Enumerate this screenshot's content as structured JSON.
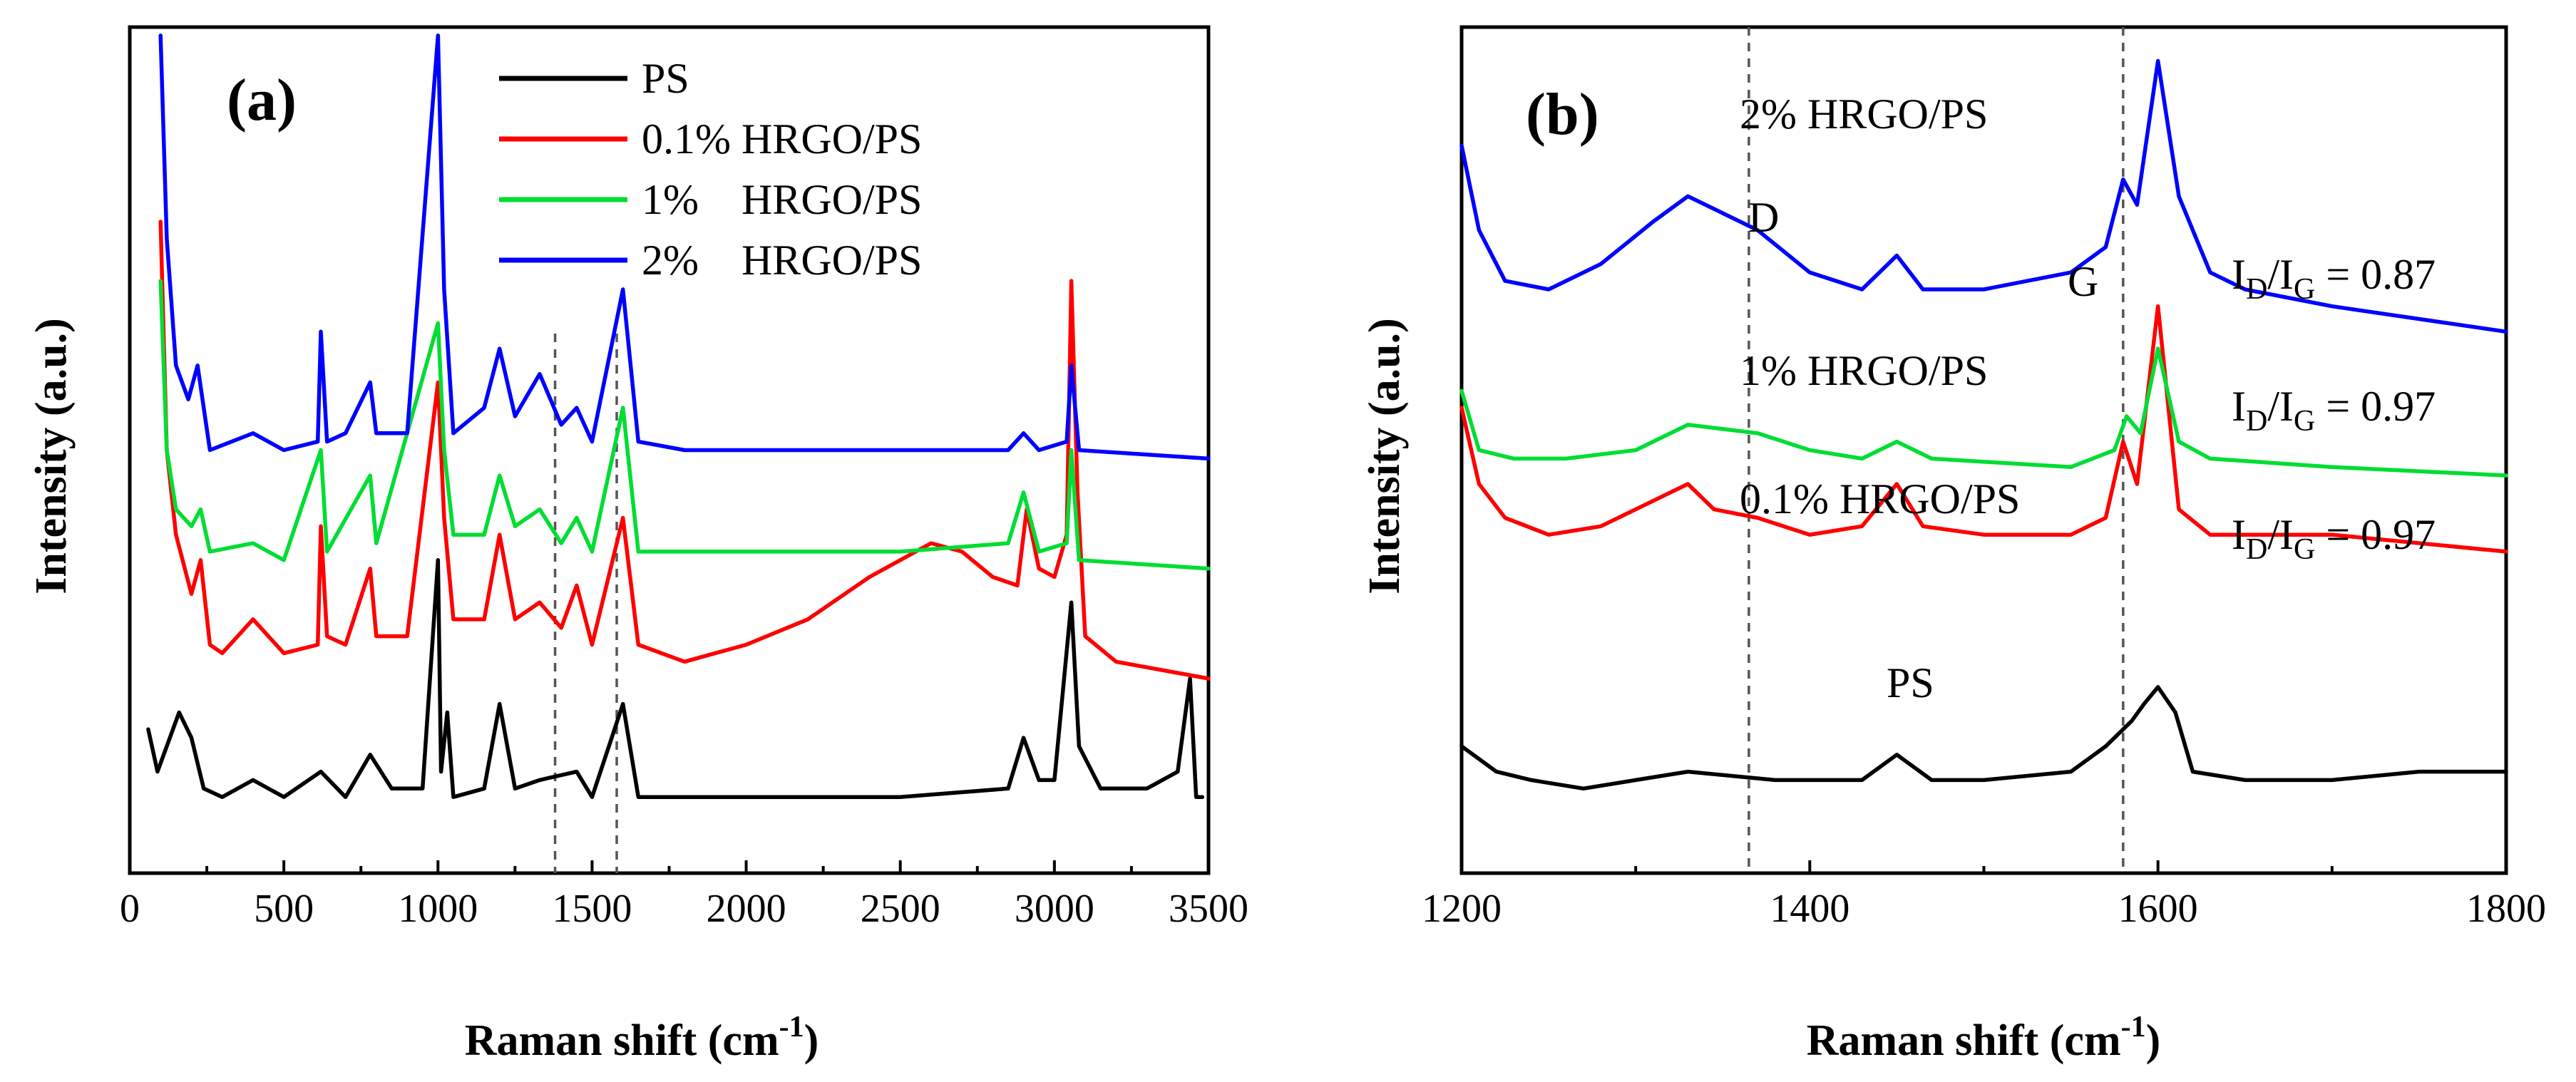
{
  "colors": {
    "PS": "#000000",
    "HRGO_0_1": "#ff0000",
    "HRGO_1": "#00dd33",
    "HRGO_2": "#0000ff"
  },
  "chart_data": [
    {
      "panel": "(a)",
      "type": "line",
      "xlabel": "Raman shift (cm",
      "xlabel_sup": "-1",
      "xlabel_tail": ")",
      "ylabel": "Intensity (a.u.)",
      "xlim": [
        0,
        3500
      ],
      "x_ticks": [
        "0",
        "500",
        "1000",
        "1500",
        "2000",
        "2500",
        "3000",
        "3500"
      ],
      "y_ticks": [],
      "reference_lines_x": [
        1380,
        1580
      ],
      "legend_position": "top-center",
      "legend": [
        {
          "series": "PS",
          "label": "PS"
        },
        {
          "series": "HRGO_0_1",
          "label": "0.1% HRGO/PS"
        },
        {
          "series": "HRGO_1",
          "label": "1%    HRGO/PS"
        },
        {
          "series": "HRGO_2",
          "label": "2%    HRGO/PS"
        }
      ],
      "series": [
        {
          "name": "PS",
          "baseline": 0.09,
          "points": [
            [
              60,
              0.17
            ],
            [
              90,
              0.12
            ],
            [
              120,
              0.15
            ],
            [
              160,
              0.19
            ],
            [
              200,
              0.16
            ],
            [
              240,
              0.1
            ],
            [
              300,
              0.09
            ],
            [
              400,
              0.11
            ],
            [
              500,
              0.09
            ],
            [
              620,
              0.12
            ],
            [
              700,
              0.09
            ],
            [
              780,
              0.14
            ],
            [
              850,
              0.1
            ],
            [
              950,
              0.1
            ],
            [
              1000,
              0.37
            ],
            [
              1010,
              0.12
            ],
            [
              1030,
              0.19
            ],
            [
              1050,
              0.09
            ],
            [
              1150,
              0.1
            ],
            [
              1200,
              0.2
            ],
            [
              1250,
              0.1
            ],
            [
              1330,
              0.11
            ],
            [
              1450,
              0.12
            ],
            [
              1500,
              0.09
            ],
            [
              1600,
              0.2
            ],
            [
              1650,
              0.09
            ],
            [
              2000,
              0.09
            ],
            [
              2500,
              0.09
            ],
            [
              2850,
              0.1
            ],
            [
              2900,
              0.16
            ],
            [
              2950,
              0.11
            ],
            [
              3000,
              0.11
            ],
            [
              3055,
              0.32
            ],
            [
              3080,
              0.15
            ],
            [
              3150,
              0.1
            ],
            [
              3300,
              0.1
            ],
            [
              3400,
              0.12
            ],
            [
              3440,
              0.23
            ],
            [
              3460,
              0.09
            ],
            [
              3480,
              0.09
            ]
          ]
        },
        {
          "name": "HRGO_0_1",
          "baseline": 0.25,
          "points": [
            [
              100,
              0.77
            ],
            [
              120,
              0.5
            ],
            [
              150,
              0.4
            ],
            [
              200,
              0.33
            ],
            [
              230,
              0.37
            ],
            [
              260,
              0.27
            ],
            [
              300,
              0.26
            ],
            [
              400,
              0.3
            ],
            [
              500,
              0.26
            ],
            [
              610,
              0.27
            ],
            [
              620,
              0.41
            ],
            [
              640,
              0.28
            ],
            [
              700,
              0.27
            ],
            [
              780,
              0.36
            ],
            [
              800,
              0.28
            ],
            [
              900,
              0.28
            ],
            [
              1000,
              0.58
            ],
            [
              1020,
              0.42
            ],
            [
              1050,
              0.3
            ],
            [
              1150,
              0.3
            ],
            [
              1200,
              0.4
            ],
            [
              1250,
              0.3
            ],
            [
              1330,
              0.32
            ],
            [
              1400,
              0.29
            ],
            [
              1450,
              0.34
            ],
            [
              1500,
              0.27
            ],
            [
              1600,
              0.42
            ],
            [
              1650,
              0.27
            ],
            [
              1800,
              0.25
            ],
            [
              2000,
              0.27
            ],
            [
              2200,
              0.3
            ],
            [
              2400,
              0.35
            ],
            [
              2600,
              0.39
            ],
            [
              2700,
              0.38
            ],
            [
              2800,
              0.35
            ],
            [
              2880,
              0.34
            ],
            [
              2910,
              0.43
            ],
            [
              2950,
              0.36
            ],
            [
              3000,
              0.35
            ],
            [
              3040,
              0.4
            ],
            [
              3055,
              0.7
            ],
            [
              3075,
              0.45
            ],
            [
              3100,
              0.28
            ],
            [
              3200,
              0.25
            ],
            [
              3500,
              0.23
            ]
          ]
        },
        {
          "name": "HRGO_1",
          "baseline": 0.37,
          "points": [
            [
              100,
              0.7
            ],
            [
              120,
              0.5
            ],
            [
              150,
              0.43
            ],
            [
              200,
              0.41
            ],
            [
              230,
              0.43
            ],
            [
              260,
              0.38
            ],
            [
              400,
              0.39
            ],
            [
              500,
              0.37
            ],
            [
              620,
              0.5
            ],
            [
              640,
              0.38
            ],
            [
              780,
              0.47
            ],
            [
              800,
              0.39
            ],
            [
              1000,
              0.65
            ],
            [
              1020,
              0.5
            ],
            [
              1050,
              0.4
            ],
            [
              1150,
              0.4
            ],
            [
              1200,
              0.47
            ],
            [
              1250,
              0.41
            ],
            [
              1330,
              0.43
            ],
            [
              1400,
              0.39
            ],
            [
              1450,
              0.42
            ],
            [
              1500,
              0.38
            ],
            [
              1600,
              0.55
            ],
            [
              1650,
              0.38
            ],
            [
              2000,
              0.38
            ],
            [
              2500,
              0.38
            ],
            [
              2850,
              0.39
            ],
            [
              2900,
              0.45
            ],
            [
              2950,
              0.38
            ],
            [
              3040,
              0.39
            ],
            [
              3055,
              0.5
            ],
            [
              3080,
              0.37
            ],
            [
              3500,
              0.36
            ]
          ]
        },
        {
          "name": "HRGO_2",
          "baseline": 0.49,
          "points": [
            [
              100,
              0.99
            ],
            [
              120,
              0.75
            ],
            [
              150,
              0.6
            ],
            [
              190,
              0.56
            ],
            [
              220,
              0.6
            ],
            [
              260,
              0.5
            ],
            [
              400,
              0.52
            ],
            [
              500,
              0.5
            ],
            [
              610,
              0.51
            ],
            [
              620,
              0.64
            ],
            [
              640,
              0.51
            ],
            [
              700,
              0.52
            ],
            [
              780,
              0.58
            ],
            [
              800,
              0.52
            ],
            [
              900,
              0.52
            ],
            [
              1000,
              0.99
            ],
            [
              1020,
              0.69
            ],
            [
              1050,
              0.52
            ],
            [
              1150,
              0.55
            ],
            [
              1200,
              0.62
            ],
            [
              1250,
              0.54
            ],
            [
              1330,
              0.59
            ],
            [
              1400,
              0.53
            ],
            [
              1450,
              0.55
            ],
            [
              1500,
              0.51
            ],
            [
              1600,
              0.69
            ],
            [
              1650,
              0.51
            ],
            [
              1800,
              0.5
            ],
            [
              2000,
              0.5
            ],
            [
              2500,
              0.5
            ],
            [
              2850,
              0.5
            ],
            [
              2900,
              0.52
            ],
            [
              2950,
              0.5
            ],
            [
              3040,
              0.51
            ],
            [
              3055,
              0.6
            ],
            [
              3080,
              0.5
            ],
            [
              3500,
              0.49
            ]
          ]
        }
      ]
    },
    {
      "panel": "(b)",
      "type": "line",
      "xlabel": "Raman shift (cm",
      "xlabel_sup": "-1",
      "xlabel_tail": ")",
      "ylabel": "Intensity (a.u.)",
      "xlim": [
        1200,
        1800
      ],
      "x_ticks": [
        "1200",
        "1400",
        "1600",
        "1800"
      ],
      "y_ticks": [],
      "reference_lines_x": [
        1365,
        1580
      ],
      "annotations": {
        "label_2": "2% HRGO/PS",
        "label_1": "1% HRGO/PS",
        "label_0_1": "0.1% HRGO/PS",
        "label_ps": "PS",
        "D": "D",
        "G": "G",
        "ratio_2": "0.87",
        "ratio_1": "0.97",
        "ratio_0_1": "0.97",
        "ratio_prefix": "I",
        "ratio_sub_D": "D",
        "ratio_sub_G": "G",
        "ratio_sep": "/",
        "ratio_eq": " = "
      },
      "series": [
        {
          "name": "PS",
          "points": [
            [
              1200,
              0.15
            ],
            [
              1220,
              0.12
            ],
            [
              1240,
              0.11
            ],
            [
              1270,
              0.1
            ],
            [
              1300,
              0.11
            ],
            [
              1330,
              0.12
            ],
            [
              1380,
              0.11
            ],
            [
              1430,
              0.11
            ],
            [
              1450,
              0.14
            ],
            [
              1470,
              0.11
            ],
            [
              1500,
              0.11
            ],
            [
              1550,
              0.12
            ],
            [
              1570,
              0.15
            ],
            [
              1585,
              0.18
            ],
            [
              1592,
              0.2
            ],
            [
              1600,
              0.22
            ],
            [
              1610,
              0.19
            ],
            [
              1620,
              0.12
            ],
            [
              1650,
              0.11
            ],
            [
              1700,
              0.11
            ],
            [
              1750,
              0.12
            ],
            [
              1800,
              0.12
            ]
          ]
        },
        {
          "name": "HRGO_0_1",
          "points": [
            [
              1200,
              0.55
            ],
            [
              1210,
              0.46
            ],
            [
              1225,
              0.42
            ],
            [
              1250,
              0.4
            ],
            [
              1280,
              0.41
            ],
            [
              1310,
              0.44
            ],
            [
              1330,
              0.46
            ],
            [
              1345,
              0.43
            ],
            [
              1370,
              0.42
            ],
            [
              1400,
              0.4
            ],
            [
              1430,
              0.41
            ],
            [
              1450,
              0.46
            ],
            [
              1465,
              0.41
            ],
            [
              1500,
              0.4
            ],
            [
              1550,
              0.4
            ],
            [
              1570,
              0.42
            ],
            [
              1580,
              0.51
            ],
            [
              1588,
              0.46
            ],
            [
              1600,
              0.67
            ],
            [
              1612,
              0.43
            ],
            [
              1630,
              0.4
            ],
            [
              1700,
              0.4
            ],
            [
              1800,
              0.38
            ]
          ]
        },
        {
          "name": "HRGO_1",
          "points": [
            [
              1200,
              0.57
            ],
            [
              1210,
              0.5
            ],
            [
              1230,
              0.49
            ],
            [
              1260,
              0.49
            ],
            [
              1300,
              0.5
            ],
            [
              1330,
              0.53
            ],
            [
              1370,
              0.52
            ],
            [
              1400,
              0.5
            ],
            [
              1430,
              0.49
            ],
            [
              1450,
              0.51
            ],
            [
              1470,
              0.49
            ],
            [
              1550,
              0.48
            ],
            [
              1575,
              0.5
            ],
            [
              1582,
              0.54
            ],
            [
              1590,
              0.52
            ],
            [
              1600,
              0.62
            ],
            [
              1612,
              0.51
            ],
            [
              1630,
              0.49
            ],
            [
              1700,
              0.48
            ],
            [
              1800,
              0.47
            ]
          ]
        },
        {
          "name": "HRGO_2",
          "points": [
            [
              1200,
              0.86
            ],
            [
              1210,
              0.76
            ],
            [
              1225,
              0.7
            ],
            [
              1250,
              0.69
            ],
            [
              1280,
              0.72
            ],
            [
              1310,
              0.77
            ],
            [
              1330,
              0.8
            ],
            [
              1350,
              0.78
            ],
            [
              1370,
              0.76
            ],
            [
              1400,
              0.71
            ],
            [
              1430,
              0.69
            ],
            [
              1450,
              0.73
            ],
            [
              1465,
              0.69
            ],
            [
              1500,
              0.69
            ],
            [
              1550,
              0.71
            ],
            [
              1570,
              0.74
            ],
            [
              1580,
              0.82
            ],
            [
              1588,
              0.79
            ],
            [
              1600,
              0.96
            ],
            [
              1612,
              0.8
            ],
            [
              1630,
              0.71
            ],
            [
              1650,
              0.69
            ],
            [
              1700,
              0.67
            ],
            [
              1800,
              0.64
            ]
          ]
        }
      ]
    }
  ]
}
